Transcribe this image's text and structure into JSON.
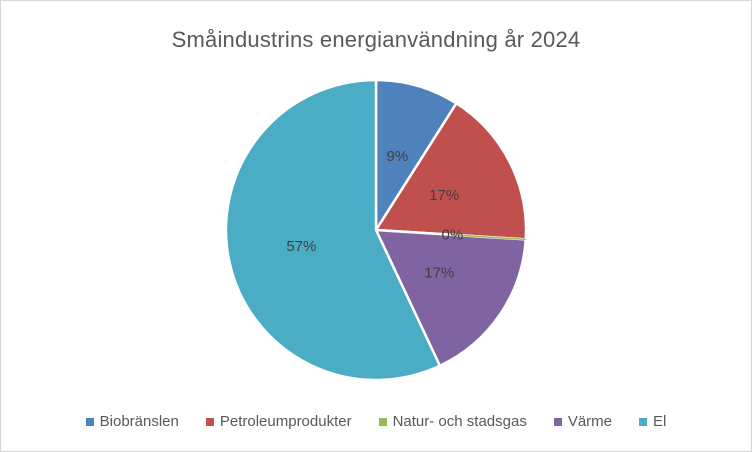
{
  "chart_data": {
    "type": "pie",
    "title": "Småindustrins energianvändning år 2024",
    "categories": [
      "Biobränslen",
      "Petroleumprodukter",
      "Natur- och stadsgas",
      "Värme",
      "El"
    ],
    "values": [
      9,
      17,
      0,
      17,
      57
    ],
    "data_labels": [
      "9%",
      "17%",
      "0%",
      "17%",
      "57%"
    ],
    "colors": [
      "#4F81BD",
      "#C0504D",
      "#9BBB59",
      "#8064A2",
      "#4BACC6"
    ],
    "start_angle_deg": 0,
    "direction": "clockwise",
    "legend_position": "bottom",
    "slice_separator_color": "#FFFFFF",
    "title_color": "#595959",
    "legend_text_color": "#595959",
    "data_label_color": "#404040",
    "frame_border_color": "#D7D7D7"
  }
}
